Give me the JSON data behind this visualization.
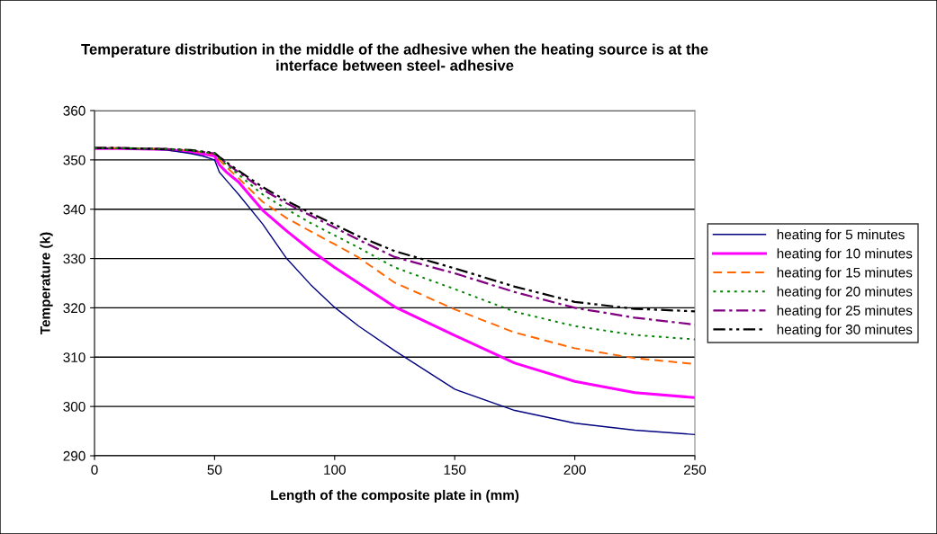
{
  "chart_data": {
    "type": "line",
    "title": "Temperature distribution in the middle of the adhesive when the heating source is at the\ninterface between steel- adhesive",
    "xlabel": "Length of the composite plate in (mm)",
    "ylabel": "Temperature (k)",
    "x": [
      0,
      10,
      20,
      30,
      40,
      45,
      50,
      52,
      55,
      60,
      70,
      80,
      90,
      100,
      110,
      125,
      150,
      175,
      200,
      225,
      250
    ],
    "xlim": [
      0,
      250
    ],
    "xticks": [
      0,
      50,
      100,
      150,
      200,
      250
    ],
    "ylim": [
      290,
      360
    ],
    "yticks": [
      290,
      300,
      310,
      320,
      330,
      340,
      350,
      360
    ],
    "grid": "y",
    "legend": "right",
    "marker": "none",
    "series": [
      {
        "name": "heating for 5 minutes",
        "color": "#000080",
        "line_style": "solid",
        "values": [
          352.3,
          352.3,
          352.2,
          352.0,
          351.3,
          350.8,
          350.0,
          347.5,
          345.8,
          343.0,
          337.0,
          330.0,
          324.7,
          320.1,
          316.3,
          311.3,
          303.5,
          299.2,
          296.6,
          295.2,
          294.3
        ]
      },
      {
        "name": "heating for 10 minutes",
        "color": "#ff00ff",
        "line_style": "solid",
        "values": [
          352.3,
          352.3,
          352.2,
          352.1,
          351.6,
          351.2,
          350.8,
          349.0,
          347.5,
          345.5,
          339.8,
          335.6,
          331.7,
          328.2,
          325.0,
          320.2,
          314.4,
          308.8,
          305.1,
          302.8,
          301.8
        ]
      },
      {
        "name": "heating for 15 minutes",
        "color": "#ff6600",
        "line_style": "dashed",
        "values": [
          352.4,
          352.4,
          352.3,
          352.2,
          351.9,
          351.5,
          351.2,
          350.0,
          348.5,
          346.3,
          341.5,
          338.2,
          335.5,
          332.9,
          330.2,
          325.1,
          319.7,
          315.0,
          311.8,
          309.8,
          308.6
        ]
      },
      {
        "name": "heating for 20 minutes",
        "color": "#008000",
        "line_style": "dotted",
        "values": [
          352.4,
          352.4,
          352.3,
          352.2,
          351.9,
          351.6,
          351.3,
          350.3,
          349.0,
          347.0,
          343.0,
          340.0,
          337.2,
          334.7,
          332.2,
          328.2,
          323.8,
          319.2,
          316.3,
          314.5,
          313.6
        ]
      },
      {
        "name": "heating for 25 minutes",
        "color": "#800080",
        "line_style": "dashdot",
        "values": [
          352.4,
          352.4,
          352.3,
          352.2,
          351.9,
          351.6,
          351.3,
          350.5,
          349.3,
          347.5,
          344.0,
          341.2,
          338.7,
          336.3,
          333.8,
          330.3,
          327.0,
          323.2,
          320.0,
          318.0,
          316.6
        ]
      },
      {
        "name": "heating for 30 minutes",
        "color": "#000000",
        "line_style": "dashdotdot",
        "values": [
          352.4,
          352.4,
          352.3,
          352.2,
          352.0,
          351.7,
          351.4,
          350.6,
          349.5,
          347.8,
          344.5,
          341.7,
          339.2,
          336.9,
          334.5,
          331.5,
          328.0,
          324.3,
          321.2,
          319.8,
          319.3
        ]
      }
    ]
  }
}
